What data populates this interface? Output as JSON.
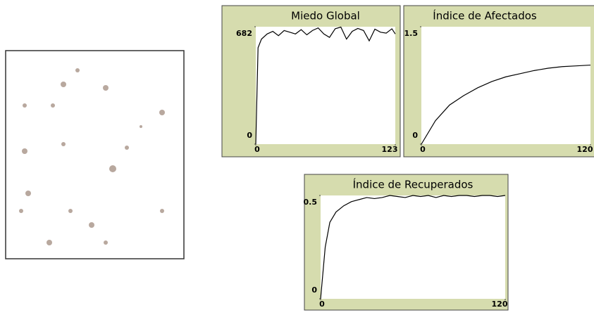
{
  "chart_data": [
    {
      "type": "line",
      "title": "Miedo Global",
      "x": [
        0,
        2,
        5,
        10,
        15,
        20,
        25,
        30,
        35,
        40,
        45,
        50,
        55,
        60,
        65,
        70,
        75,
        80,
        85,
        90,
        95,
        100,
        105,
        110,
        115,
        120,
        123
      ],
      "series": [
        {
          "color": "#000000",
          "values": [
            0,
            560,
            610,
            640,
            655,
            630,
            660,
            650,
            640,
            665,
            635,
            660,
            675,
            640,
            620,
            670,
            680,
            610,
            655,
            672,
            660,
            600,
            668,
            650,
            645,
            670,
            640
          ]
        }
      ],
      "xlim": [
        0,
        123
      ],
      "xticks": [
        0,
        123
      ],
      "ylim": [
        0,
        682
      ],
      "yticks": [
        0,
        682
      ]
    },
    {
      "type": "line",
      "title": "Índice de Afectados",
      "x": [
        0,
        10,
        20,
        30,
        40,
        50,
        60,
        70,
        80,
        90,
        100,
        110,
        120
      ],
      "series": [
        {
          "color": "#000000",
          "values": [
            0,
            0.3,
            0.5,
            0.62,
            0.72,
            0.8,
            0.86,
            0.9,
            0.94,
            0.97,
            0.99,
            1.0,
            1.01
          ]
        }
      ],
      "xlim": [
        0,
        120
      ],
      "xticks": [
        0,
        120
      ],
      "ylim": [
        0,
        1.5
      ],
      "yticks": [
        0,
        1.5
      ]
    },
    {
      "type": "line",
      "title": "Índice de Recuperados",
      "x": [
        0,
        3,
        6,
        10,
        15,
        20,
        25,
        30,
        35,
        40,
        45,
        50,
        55,
        60,
        65,
        70,
        75,
        80,
        85,
        90,
        95,
        100,
        105,
        110,
        115,
        120
      ],
      "series": [
        {
          "color": "#000000",
          "values": [
            0,
            0.25,
            0.37,
            0.42,
            0.45,
            0.47,
            0.48,
            0.49,
            0.485,
            0.49,
            0.5,
            0.495,
            0.49,
            0.5,
            0.495,
            0.5,
            0.49,
            0.5,
            0.495,
            0.5,
            0.5,
            0.495,
            0.5,
            0.5,
            0.495,
            0.5
          ]
        }
      ],
      "xlim": [
        0,
        120
      ],
      "xticks": [
        0,
        120
      ],
      "ylim": [
        0,
        0.5
      ],
      "yticks": [
        0,
        0.5
      ]
    }
  ]
}
